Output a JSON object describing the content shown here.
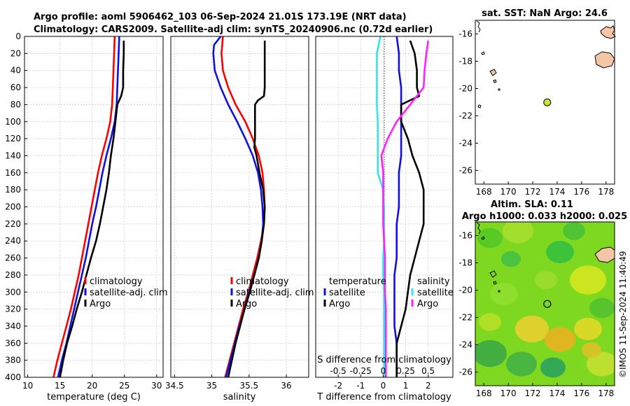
{
  "header": {
    "line1": "Argo profile: aoml 5906462_103 06-Sep-2024 21.01S 173.19E (NRT data)",
    "line2": "Climatology: CARS2009. Satellite-adj clim: synTS_20240906.nc (0.72d earlier)"
  },
  "copyright": "©IMOS 11-Sep-2024 11:40:49",
  "colors": {
    "red": "#ff0000",
    "blue": "#1010e0",
    "black": "#000000",
    "cyan": "#30e8e8",
    "magenta": "#ff20ff",
    "land": "#f5c6a5",
    "marker": "#c8e830"
  },
  "depth_ticks": [
    "0",
    "20",
    "40",
    "60",
    "80",
    "100",
    "120",
    "140",
    "160",
    "180",
    "200",
    "220",
    "240",
    "260",
    "280",
    "300",
    "320",
    "340",
    "360",
    "380",
    "400"
  ],
  "chart_data": [
    {
      "id": "temperature",
      "type": "line",
      "title": "",
      "xlabel": "temperature (deg C)",
      "ylabel": "",
      "xlim": [
        9.5,
        31
      ],
      "ylim": [
        400,
        0
      ],
      "xticks": [
        "10",
        "15",
        "20",
        "25",
        "30"
      ],
      "legend": {
        "position": "bottom-right",
        "labels": [
          "climatology",
          "satellite-adj. clim",
          "Argo"
        ]
      },
      "series": [
        {
          "name": "climatology",
          "color": "red",
          "depth": [
            0,
            20,
            40,
            60,
            80,
            100,
            120,
            140,
            160,
            180,
            200,
            220,
            240,
            260,
            280,
            300,
            320,
            340,
            360,
            380,
            400
          ],
          "values": [
            23.5,
            23.4,
            23.3,
            23.2,
            23.1,
            22.8,
            22.2,
            21.5,
            20.9,
            20.4,
            19.9,
            19.4,
            18.9,
            18.4,
            17.9,
            17.3,
            16.7,
            16.0,
            15.3,
            14.6,
            14.0
          ]
        },
        {
          "name": "satellite-adj. clim",
          "color": "blue",
          "depth": [
            0,
            20,
            40,
            60,
            80,
            100,
            120,
            140,
            160,
            180,
            200,
            220,
            240,
            260,
            280,
            300,
            320,
            340,
            360,
            380,
            400
          ],
          "values": [
            24.2,
            24.1,
            24.0,
            23.9,
            23.8,
            23.5,
            22.9,
            22.2,
            21.6,
            21.1,
            20.6,
            20.0,
            19.5,
            19.0,
            18.4,
            17.8,
            17.2,
            16.6,
            16.0,
            15.3,
            14.7
          ]
        },
        {
          "name": "Argo",
          "color": "black",
          "depth": [
            5,
            20,
            40,
            60,
            70,
            80,
            100,
            120,
            140,
            160,
            180,
            200,
            220,
            240,
            260,
            280,
            300,
            320,
            340,
            360,
            380,
            400
          ],
          "values": [
            24.9,
            24.9,
            24.8,
            24.8,
            24.5,
            23.9,
            23.6,
            23.3,
            22.9,
            22.6,
            22.2,
            21.7,
            21.2,
            20.6,
            19.8,
            19.1,
            18.4,
            17.6,
            16.9,
            16.1,
            15.5,
            15.0
          ]
        }
      ]
    },
    {
      "id": "salinity",
      "type": "line",
      "title": "",
      "xlabel": "salinity",
      "ylabel": "",
      "xlim": [
        34.45,
        36.3
      ],
      "ylim": [
        400,
        0
      ],
      "xticks": [
        "34.5",
        "35",
        "35.5",
        "36"
      ],
      "legend": {
        "position": "bottom-right",
        "labels": [
          "climatology",
          "satellite-adj. clim",
          "Argo"
        ]
      },
      "series": [
        {
          "name": "climatology",
          "color": "red",
          "depth": [
            0,
            20,
            40,
            60,
            80,
            100,
            120,
            140,
            160,
            180,
            200,
            220,
            240,
            260,
            280,
            300,
            320,
            340,
            360,
            380,
            400
          ],
          "values": [
            35.15,
            35.13,
            35.15,
            35.22,
            35.32,
            35.45,
            35.55,
            35.63,
            35.68,
            35.7,
            35.71,
            35.7,
            35.66,
            35.61,
            35.55,
            35.49,
            35.42,
            35.36,
            35.3,
            35.24,
            35.18
          ]
        },
        {
          "name": "satellite-adj. clim",
          "color": "blue",
          "depth": [
            0,
            10,
            20,
            40,
            60,
            80,
            100,
            120,
            140,
            160,
            180,
            200,
            220,
            240,
            260,
            280,
            300,
            320,
            340,
            360,
            380,
            400
          ],
          "values": [
            35.12,
            35.03,
            35.02,
            35.04,
            35.12,
            35.22,
            35.34,
            35.45,
            35.55,
            35.62,
            35.66,
            35.68,
            35.69,
            35.67,
            35.63,
            35.57,
            35.5,
            35.44,
            35.37,
            35.31,
            35.25,
            35.19
          ]
        },
        {
          "name": "Argo",
          "color": "black",
          "depth": [
            5,
            20,
            40,
            60,
            70,
            75,
            80,
            100,
            120,
            130,
            140,
            150,
            160,
            180,
            200,
            220,
            240,
            260,
            280,
            300,
            320,
            340,
            360,
            380,
            400
          ],
          "values": [
            35.71,
            35.71,
            35.71,
            35.71,
            35.7,
            35.62,
            35.58,
            35.58,
            35.58,
            35.57,
            35.6,
            35.62,
            35.64,
            35.69,
            35.71,
            35.7,
            35.67,
            35.63,
            35.57,
            35.51,
            35.44,
            35.38,
            35.32,
            35.27,
            35.22
          ]
        }
      ]
    },
    {
      "id": "differences",
      "type": "line",
      "title": "",
      "xlabel": "T difference from climatology",
      "xlabel2": "S difference from climatology",
      "ylabel": "",
      "xlim": [
        -3,
        3.1
      ],
      "ylim": [
        400,
        0
      ],
      "xticks": [
        "-2",
        "-1",
        "0",
        "1",
        "2"
      ],
      "xticks2": [
        "-0.5",
        "-0.25",
        "0",
        "0.25",
        "0.5"
      ],
      "legend": {
        "position": "bottom",
        "temperature_title": "temperature",
        "salinity_title": "salinity",
        "labels": [
          "satellite",
          "Argo",
          "satellite",
          "Argo"
        ]
      },
      "series": [
        {
          "name": "temperature satellite",
          "color": "blue",
          "depth": [
            0,
            20,
            40,
            60,
            80,
            100,
            120,
            140,
            160,
            180,
            200,
            220,
            240,
            260,
            280,
            300,
            320,
            340,
            360,
            380,
            400
          ],
          "values": [
            0.6,
            0.7,
            0.7,
            0.8,
            0.8,
            0.8,
            0.8,
            0.8,
            0.7,
            0.7,
            0.7,
            0.6,
            0.6,
            0.6,
            0.5,
            0.5,
            0.5,
            0.5,
            0.6,
            0.6,
            0.6
          ]
        },
        {
          "name": "temperature Argo",
          "color": "black",
          "depth": [
            5,
            20,
            40,
            60,
            70,
            80,
            100,
            120,
            140,
            160,
            180,
            200,
            220,
            240,
            260,
            280,
            300,
            320,
            340,
            360,
            380,
            400
          ],
          "values": [
            1.2,
            1.4,
            1.5,
            1.5,
            1.6,
            0.8,
            0.8,
            1.1,
            1.3,
            1.6,
            1.8,
            1.8,
            1.8,
            1.6,
            1.4,
            1.2,
            1.1,
            1.0,
            0.8,
            0.6,
            0.6,
            0.6
          ]
        },
        {
          "name": "salinity satellite",
          "color": "cyan",
          "depth": [
            0,
            20,
            40,
            60,
            80,
            100,
            120,
            140,
            160,
            180,
            200,
            220,
            240,
            260,
            280,
            300,
            320,
            340,
            360,
            380,
            400
          ],
          "values": [
            -0.03,
            -0.07,
            -0.07,
            -0.07,
            -0.07,
            -0.06,
            -0.06,
            -0.06,
            -0.06,
            0.0,
            0.01,
            0.01,
            0.01,
            0.0,
            0.0,
            0.01,
            0.01,
            0.01,
            0.01,
            0.01,
            0.01
          ]
        },
        {
          "name": "salinity Argo",
          "color": "magenta",
          "depth": [
            5,
            20,
            40,
            60,
            80,
            100,
            120,
            140,
            160,
            180,
            200,
            220,
            240,
            260,
            280,
            300,
            320,
            340,
            360,
            380,
            400
          ],
          "values": [
            0.5,
            0.48,
            0.46,
            0.45,
            0.3,
            0.15,
            0.05,
            -0.02,
            0.0,
            0.0,
            0.0,
            0.0,
            0.01,
            0.02,
            0.02,
            0.02,
            0.03,
            0.03,
            0.03,
            0.03,
            0.03
          ]
        }
      ]
    },
    {
      "id": "sst-map",
      "type": "heatmap",
      "title": "sat. SST: NaN Argo: 24.6",
      "xlim": [
        167.3,
        178.7
      ],
      "ylim": [
        -27,
        -15
      ],
      "xticks": [
        "168",
        "170",
        "172",
        "174",
        "176",
        "178"
      ],
      "yticks": [
        "-16",
        "-18",
        "-20",
        "-22",
        "-24",
        "-26"
      ],
      "argo_position": {
        "lon": 173.19,
        "lat": -21.01
      }
    },
    {
      "id": "sla-map",
      "type": "heatmap",
      "title": "Altim. SLA: 0.11",
      "title2": "Argo h1000: 0.033 h2000: 0.025",
      "xlim": [
        167.3,
        178.7
      ],
      "ylim": [
        -27,
        -15
      ],
      "xticks": [
        "168",
        "170",
        "172",
        "174",
        "176",
        "178"
      ],
      "yticks": [
        "-16",
        "-18",
        "-20",
        "-22",
        "-24",
        "-26"
      ],
      "argo_position": {
        "lon": 173.19,
        "lat": -21.01
      }
    }
  ]
}
